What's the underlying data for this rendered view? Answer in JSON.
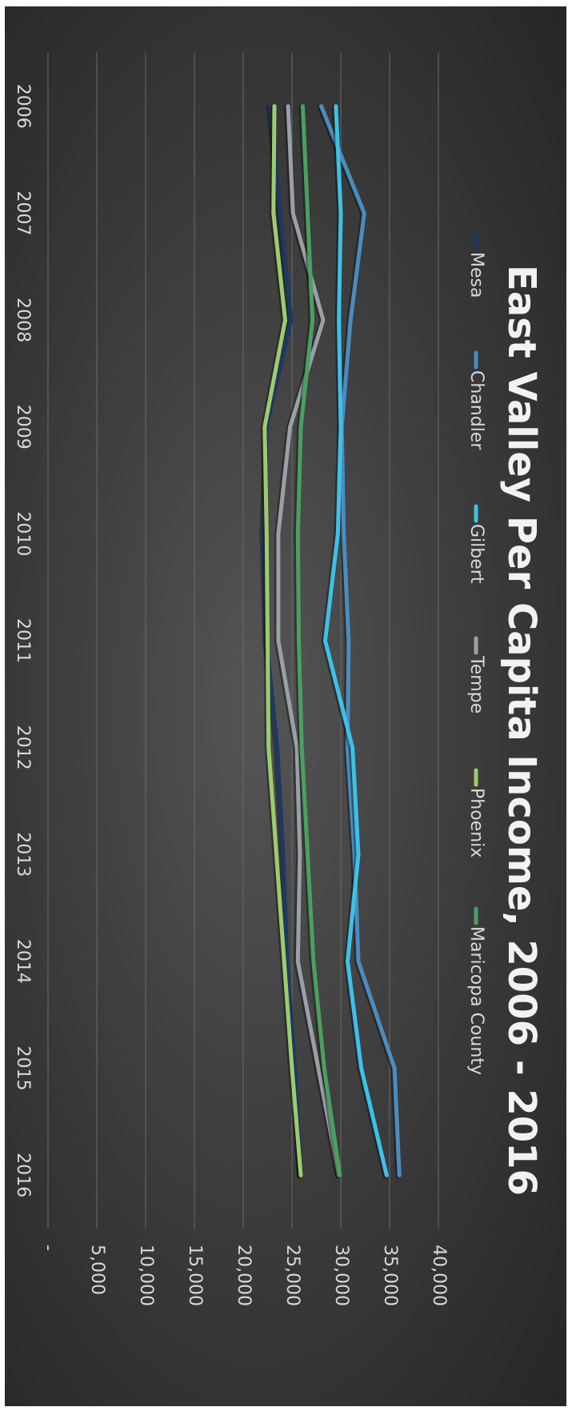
{
  "chart_data": {
    "type": "line",
    "title": "East Valley Per Capita Income, 2006 - 2016",
    "x": [
      "2006",
      "2007",
      "2008",
      "2009",
      "2010",
      "2011",
      "2012",
      "2013",
      "2014",
      "2015",
      "2016"
    ],
    "ylim": [
      0,
      40000
    ],
    "yticks": [
      {
        "value": 0,
        "label": "-"
      },
      {
        "value": 5000,
        "label": "5,000"
      },
      {
        "value": 10000,
        "label": "10,000"
      },
      {
        "value": 15000,
        "label": "15,000"
      },
      {
        "value": 20000,
        "label": "20,000"
      },
      {
        "value": 25000,
        "label": "25,000"
      },
      {
        "value": 30000,
        "label": "30,000"
      },
      {
        "value": 35000,
        "label": "35,000"
      },
      {
        "value": 40000,
        "label": "40,000"
      }
    ],
    "grid": true,
    "legend": "top",
    "series": [
      {
        "name": "Mesa",
        "color": "#1f3864",
        "values": [
          22800,
          23800,
          24900,
          22400,
          22100,
          22400,
          23500,
          24100,
          24500,
          25300,
          25900
        ]
      },
      {
        "name": "Chandler",
        "color": "#4a8cc0",
        "values": [
          28000,
          32400,
          31000,
          30100,
          30300,
          30800,
          30700,
          31400,
          31800,
          35500,
          36000
        ]
      },
      {
        "name": "Gilbert",
        "color": "#3cc1e8",
        "values": [
          29500,
          30000,
          29800,
          30000,
          29700,
          28400,
          31200,
          31800,
          30700,
          32100,
          34700
        ]
      },
      {
        "name": "Tempe",
        "color": "#98a0a8",
        "values": [
          24600,
          25100,
          28200,
          24800,
          23600,
          23600,
          25500,
          25800,
          25600,
          27700,
          29800
        ]
      },
      {
        "name": "Phoenix",
        "color": "#9ccc6c",
        "values": [
          23200,
          23100,
          24300,
          22200,
          22400,
          22500,
          22600,
          23400,
          24200,
          25000,
          25900
        ]
      },
      {
        "name": "Maricopa County",
        "color": "#4aa060",
        "values": [
          26100,
          26600,
          27100,
          25900,
          25600,
          25700,
          26000,
          26600,
          27200,
          28300,
          29900
        ]
      }
    ]
  }
}
